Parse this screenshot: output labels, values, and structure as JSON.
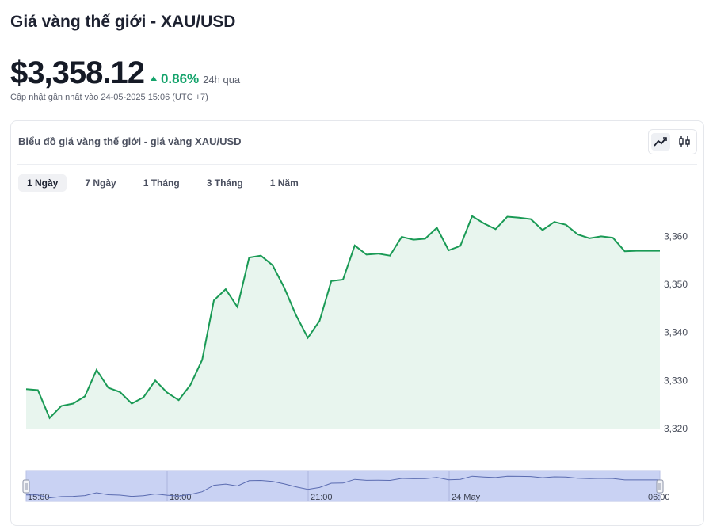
{
  "page": {
    "title": "Giá vàng thế giới - XAU/USD",
    "price": "$3,358.12",
    "change_pct": "0.86%",
    "change_period": "24h qua",
    "updated": "Cập nhật gần nhất vào 24-05-2025 15:06 (UTC +7)"
  },
  "card": {
    "title": "Biểu đồ giá vàng thế giới - giá vàng XAU/USD",
    "tabs": [
      {
        "label": "1 Ngày",
        "active": true
      },
      {
        "label": "7 Ngày"
      },
      {
        "label": "1 Tháng"
      },
      {
        "label": "3 Tháng"
      },
      {
        "label": "1 Năm"
      }
    ],
    "chart_toggles": [
      {
        "icon": "line-chart-icon",
        "active": true
      },
      {
        "icon": "candlestick-icon",
        "active": false
      }
    ]
  },
  "colors": {
    "up": "#14a36b",
    "line": "#1a9a55",
    "area": "#e8f5ee",
    "navigator_fill": "#c9d2f3"
  },
  "chart_data": {
    "type": "area",
    "title": "",
    "y_ticks": [
      3320,
      3330,
      3340,
      3350,
      3360
    ],
    "ylim": [
      3320,
      3366
    ],
    "y": [
      3328.2,
      3328.0,
      3322.2,
      3324.7,
      3325.2,
      3326.7,
      3332.2,
      3328.5,
      3327.6,
      3325.2,
      3326.5,
      3330.0,
      3327.5,
      3325.9,
      3329.1,
      3334.3,
      3346.7,
      3349.0,
      3345.3,
      3355.6,
      3356.0,
      3354.0,
      3349.3,
      3343.6,
      3338.9,
      3342.4,
      3350.7,
      3351.0,
      3358.1,
      3356.2,
      3356.4,
      3356.0,
      3359.9,
      3359.3,
      3359.5,
      3361.8,
      3357.1,
      3358.0,
      3364.2,
      3362.7,
      3361.5,
      3364.1,
      3363.9,
      3363.6,
      3361.3,
      3363.0,
      3362.4,
      3360.4,
      3359.6,
      3360.0,
      3359.7,
      3356.9,
      3357.0,
      3357.0,
      3357.0
    ],
    "navigator_labels": [
      "15:00",
      "18:00",
      "21:00",
      "24 May",
      "06:00"
    ]
  }
}
